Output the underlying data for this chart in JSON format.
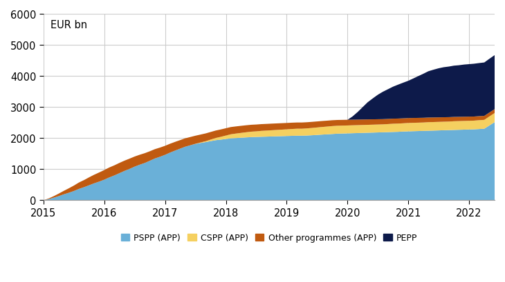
{
  "ylabel_text": "EUR bn",
  "ylim": [
    0,
    6000
  ],
  "yticks": [
    0,
    1000,
    2000,
    3000,
    4000,
    5000,
    6000
  ],
  "xlim": [
    2015.0,
    2022.42
  ],
  "background_color": "#ffffff",
  "grid_color": "#cccccc",
  "series_colors": [
    "#6ab0d8",
    "#f5d060",
    "#c05a10",
    "#0d1a4a"
  ],
  "series_labels": [
    "PSPP (APP)",
    "CSPP (APP)",
    "Other programmes (APP)",
    "PEPP"
  ],
  "years": [
    2015.0,
    2015.08,
    2015.17,
    2015.25,
    2015.33,
    2015.42,
    2015.5,
    2015.58,
    2015.67,
    2015.75,
    2015.83,
    2015.92,
    2016.0,
    2016.08,
    2016.17,
    2016.25,
    2016.33,
    2016.42,
    2016.5,
    2016.58,
    2016.67,
    2016.75,
    2016.83,
    2016.92,
    2017.0,
    2017.08,
    2017.17,
    2017.25,
    2017.33,
    2017.42,
    2017.5,
    2017.58,
    2017.67,
    2017.75,
    2017.83,
    2017.92,
    2018.0,
    2018.08,
    2018.17,
    2018.25,
    2018.33,
    2018.42,
    2018.5,
    2018.58,
    2018.67,
    2018.75,
    2018.83,
    2018.92,
    2019.0,
    2019.08,
    2019.17,
    2019.25,
    2019.33,
    2019.42,
    2019.5,
    2019.58,
    2019.67,
    2019.75,
    2019.83,
    2019.92,
    2020.0,
    2020.08,
    2020.17,
    2020.25,
    2020.33,
    2020.42,
    2020.5,
    2020.58,
    2020.67,
    2020.75,
    2020.83,
    2020.92,
    2021.0,
    2021.08,
    2021.17,
    2021.25,
    2021.33,
    2021.42,
    2021.5,
    2021.58,
    2021.67,
    2021.75,
    2021.83,
    2021.92,
    2022.0,
    2022.08,
    2022.17,
    2022.25,
    2022.33,
    2022.42
  ],
  "pspp": [
    0,
    30,
    80,
    130,
    185,
    240,
    295,
    360,
    420,
    480,
    540,
    600,
    660,
    730,
    800,
    870,
    940,
    1010,
    1080,
    1140,
    1200,
    1270,
    1340,
    1400,
    1460,
    1530,
    1600,
    1660,
    1720,
    1770,
    1810,
    1840,
    1870,
    1900,
    1930,
    1950,
    1970,
    1990,
    2000,
    2010,
    2020,
    2030,
    2035,
    2040,
    2045,
    2050,
    2055,
    2060,
    2065,
    2070,
    2075,
    2075,
    2080,
    2090,
    2100,
    2110,
    2120,
    2130,
    2140,
    2145,
    2150,
    2155,
    2160,
    2165,
    2170,
    2175,
    2180,
    2185,
    2190,
    2195,
    2200,
    2210,
    2215,
    2220,
    2225,
    2230,
    2235,
    2240,
    2245,
    2250,
    2255,
    2260,
    2265,
    2270,
    2275,
    2280,
    2290,
    2300,
    2400,
    2510
  ],
  "cspp": [
    0,
    0,
    0,
    0,
    0,
    0,
    0,
    0,
    0,
    0,
    0,
    0,
    0,
    0,
    0,
    0,
    0,
    0,
    0,
    0,
    0,
    0,
    0,
    0,
    0,
    0,
    0,
    0,
    0,
    0,
    5,
    15,
    30,
    50,
    70,
    90,
    110,
    130,
    145,
    155,
    165,
    175,
    180,
    190,
    195,
    200,
    205,
    210,
    215,
    220,
    225,
    225,
    230,
    235,
    240,
    245,
    250,
    255,
    255,
    255,
    255,
    255,
    255,
    255,
    255,
    255,
    255,
    255,
    260,
    265,
    265,
    265,
    270,
    270,
    270,
    270,
    275,
    275,
    275,
    275,
    275,
    280,
    280,
    280,
    280,
    280,
    285,
    285,
    290,
    295
  ],
  "other_app": [
    0,
    20,
    50,
    80,
    110,
    145,
    175,
    205,
    230,
    255,
    275,
    295,
    310,
    320,
    325,
    330,
    330,
    330,
    325,
    320,
    315,
    305,
    300,
    295,
    290,
    285,
    280,
    275,
    270,
    265,
    260,
    255,
    250,
    245,
    240,
    238,
    235,
    233,
    230,
    228,
    225,
    222,
    220,
    217,
    215,
    213,
    210,
    208,
    205,
    203,
    200,
    200,
    198,
    196,
    194,
    192,
    190,
    188,
    186,
    184,
    182,
    180,
    178,
    176,
    174,
    172,
    170,
    168,
    166,
    164,
    162,
    160,
    158,
    156,
    154,
    152,
    150,
    148,
    146,
    144,
    142,
    140,
    138,
    136,
    134,
    132,
    130,
    128,
    126,
    124
  ],
  "pepp": [
    0,
    0,
    0,
    0,
    0,
    0,
    0,
    0,
    0,
    0,
    0,
    0,
    0,
    0,
    0,
    0,
    0,
    0,
    0,
    0,
    0,
    0,
    0,
    0,
    0,
    0,
    0,
    0,
    0,
    0,
    0,
    0,
    0,
    0,
    0,
    0,
    0,
    0,
    0,
    0,
    0,
    0,
    0,
    0,
    0,
    0,
    0,
    0,
    0,
    0,
    0,
    0,
    0,
    0,
    0,
    0,
    0,
    0,
    0,
    0,
    0,
    100,
    250,
    400,
    550,
    680,
    790,
    880,
    960,
    1030,
    1090,
    1150,
    1200,
    1270,
    1350,
    1420,
    1490,
    1540,
    1580,
    1610,
    1630,
    1650,
    1660,
    1680,
    1690,
    1700,
    1710,
    1720,
    1730,
    1740
  ],
  "xticks": [
    2015,
    2016,
    2017,
    2018,
    2019,
    2020,
    2021,
    2022
  ]
}
